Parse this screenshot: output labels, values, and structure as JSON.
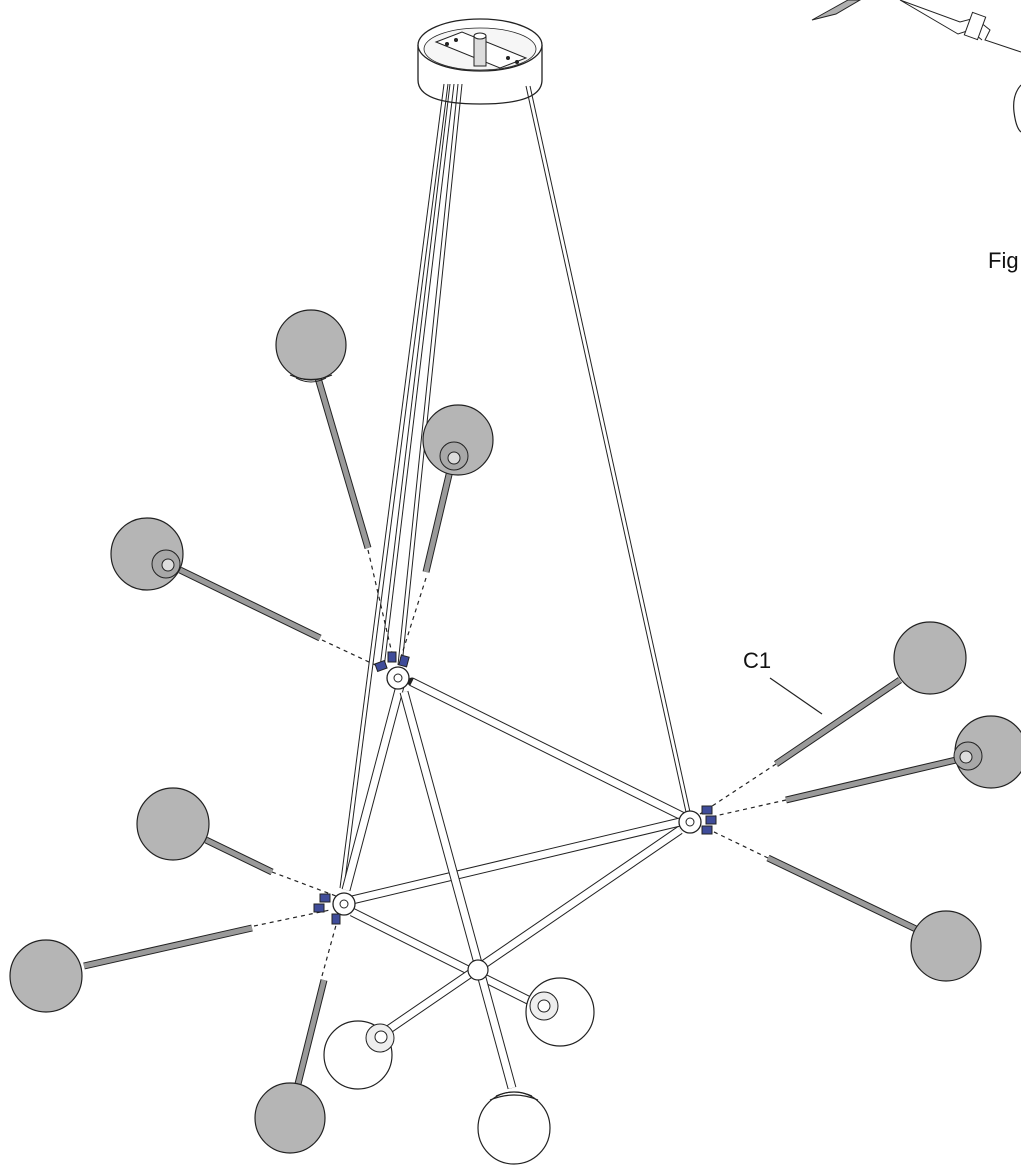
{
  "labels": {
    "callout": "C1",
    "fig_partial": "Fig"
  },
  "colors": {
    "globe_frosted": "#b5b5b5",
    "globe_clear": "#ffffff",
    "connector_cap": "#3f4c9a",
    "line": "#222222",
    "rod_gray": "#9a9a9a"
  },
  "icons": [
    "ceiling-canopy-icon",
    "globe-icon",
    "hub-icon",
    "wire-connector-icon",
    "socket-icon"
  ]
}
